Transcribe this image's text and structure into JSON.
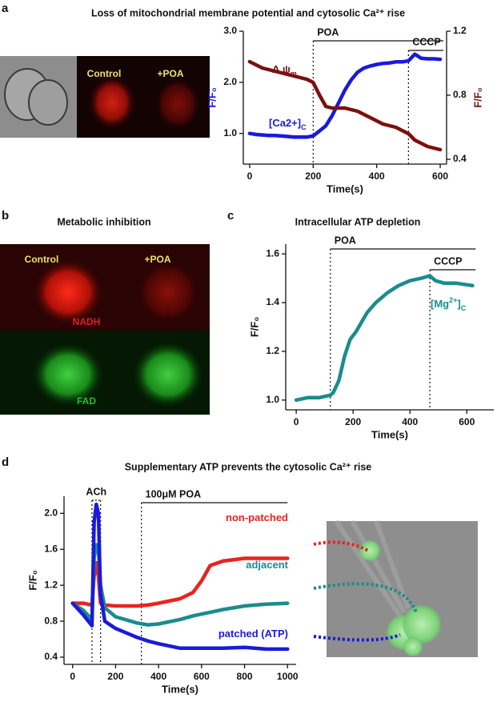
{
  "panels": [
    {
      "label": "a",
      "title": "Loss of mitochondrial membrane potential and cytosolic Ca²⁺ rise",
      "image_labels": [
        "Control",
        "+POA"
      ]
    },
    {
      "label": "b",
      "title": "Metabolic inhibition",
      "image_labels": [
        "Control",
        "+POA",
        "NADH",
        "FAD"
      ]
    },
    {
      "label": "c",
      "title": "Intracellular ATP depletion"
    },
    {
      "label": "d",
      "title": "Supplementary ATP prevents the cytosolic Ca²⁺ rise"
    }
  ],
  "chart_data": [
    {
      "type": "line",
      "xlabel": "Time(s)",
      "ylabel": "F/F₀",
      "y2label": "F/F₀",
      "xlim": [
        -20,
        620
      ],
      "xticks": [
        0,
        200,
        400,
        600
      ],
      "ylim": [
        0.4,
        3.0
      ],
      "yticks": [
        {
          "value": 1,
          "label": "1.0"
        },
        {
          "value": 2,
          "label": "2.0"
        },
        {
          "value": 3,
          "label": "3.0"
        }
      ],
      "y2lim": [
        0.37,
        1.2
      ],
      "y2ticks": [
        0.4,
        0.8,
        1.2
      ],
      "periods": [
        {
          "label": "POA",
          "start": 200,
          "end": 600
        },
        {
          "label": "CCCP",
          "start": 500,
          "end": 600
        }
      ],
      "x": [
        0,
        20,
        40,
        60,
        80,
        100,
        120,
        140,
        160,
        180,
        200,
        220,
        240,
        260,
        280,
        300,
        320,
        340,
        360,
        380,
        400,
        420,
        440,
        460,
        480,
        500,
        520,
        540,
        560,
        580,
        600
      ],
      "series": [
        {
          "name": "[Ca2+]",
          "name_subscript": "C",
          "color": "#1a1adc",
          "values": [
            1.0,
            0.98,
            0.97,
            0.96,
            0.96,
            0.95,
            0.94,
            0.93,
            0.93,
            0.93,
            0.95,
            1.05,
            1.15,
            1.35,
            1.6,
            1.85,
            2.05,
            2.2,
            2.28,
            2.32,
            2.35,
            2.37,
            2.38,
            2.4,
            2.4,
            2.42,
            2.55,
            2.47,
            2.46,
            2.46,
            2.45
          ]
        },
        {
          "name": "Δ ψ",
          "name_subscript": "m",
          "color": "#7b1010",
          "axis": "y2",
          "values": [
            1.01,
            0.99,
            0.97,
            0.96,
            0.95,
            0.94,
            0.93,
            0.92,
            0.91,
            0.9,
            0.88,
            0.8,
            0.73,
            0.72,
            0.72,
            0.72,
            0.71,
            0.7,
            0.68,
            0.66,
            0.64,
            0.62,
            0.61,
            0.6,
            0.58,
            0.56,
            0.52,
            0.5,
            0.48,
            0.47,
            0.46
          ]
        }
      ]
    },
    {
      "type": "line",
      "xlabel": "Time(s)",
      "ylabel": "F/F₀",
      "xlim": [
        -37,
        695
      ],
      "xticks": [
        0,
        200,
        400,
        600
      ],
      "ylim": [
        0.96,
        1.64
      ],
      "yticks": [
        {
          "value": 1,
          "label": "1.0"
        },
        1.2,
        1.4,
        1.6
      ],
      "periods": [
        {
          "label": "POA",
          "start": 120,
          "end": 620
        },
        {
          "label": "CCCP",
          "start": 470,
          "end": 620
        }
      ],
      "x": [
        0,
        40,
        80,
        120,
        130,
        150,
        170,
        190,
        210,
        230,
        250,
        280,
        320,
        360,
        400,
        440,
        470,
        490,
        520,
        560,
        620
      ],
      "series": [
        {
          "name": "[Mg",
          "name_superscript": "2+",
          "name_suffix": "]",
          "name_subscript": "C",
          "color": "#1a8c8c",
          "values": [
            1.0,
            1.01,
            1.01,
            1.02,
            1.03,
            1.08,
            1.18,
            1.25,
            1.28,
            1.32,
            1.36,
            1.4,
            1.44,
            1.47,
            1.49,
            1.5,
            1.51,
            1.49,
            1.48,
            1.48,
            1.47
          ]
        }
      ]
    },
    {
      "type": "line",
      "xlabel": "Time(s)",
      "ylabel": "F/F₀",
      "xlim": [
        -40,
        1040
      ],
      "xticks": [
        0,
        200,
        400,
        600,
        800,
        1000
      ],
      "ylim": [
        0.32,
        2.19
      ],
      "yticks": [
        0.4,
        0.8,
        1.2,
        1.6,
        {
          "value": 2,
          "label": "2.0"
        }
      ],
      "periods": [
        {
          "label": "ACh",
          "start": 90,
          "end": 130
        },
        {
          "label": "100μM POA",
          "start": 320,
          "end": 1000
        }
      ],
      "x": [
        0,
        50,
        90,
        100,
        110,
        120,
        130,
        150,
        200,
        300,
        350,
        400,
        500,
        560,
        600,
        640,
        700,
        800,
        900,
        1000
      ],
      "series": [
        {
          "name": "non-patched",
          "color": "#e8231e",
          "values": [
            1.0,
            1.0,
            0.98,
            1.3,
            1.45,
            1.3,
            1.0,
            0.98,
            0.97,
            0.97,
            0.98,
            1.0,
            1.05,
            1.12,
            1.25,
            1.42,
            1.47,
            1.5,
            1.5,
            1.5
          ]
        },
        {
          "name": "adjacent",
          "color": "#1a8c8c",
          "values": [
            1.0,
            0.92,
            0.82,
            1.5,
            1.65,
            1.6,
            1.2,
            0.95,
            0.85,
            0.78,
            0.76,
            0.77,
            0.82,
            0.86,
            0.88,
            0.9,
            0.93,
            0.97,
            0.99,
            1.0
          ]
        },
        {
          "name": "patched (ATP)",
          "color": "#1a1adc",
          "values": [
            1.0,
            0.87,
            0.75,
            1.9,
            2.1,
            2.0,
            1.1,
            0.8,
            0.72,
            0.62,
            0.58,
            0.55,
            0.5,
            0.5,
            0.5,
            0.5,
            0.5,
            0.51,
            0.49,
            0.49
          ]
        }
      ]
    }
  ]
}
